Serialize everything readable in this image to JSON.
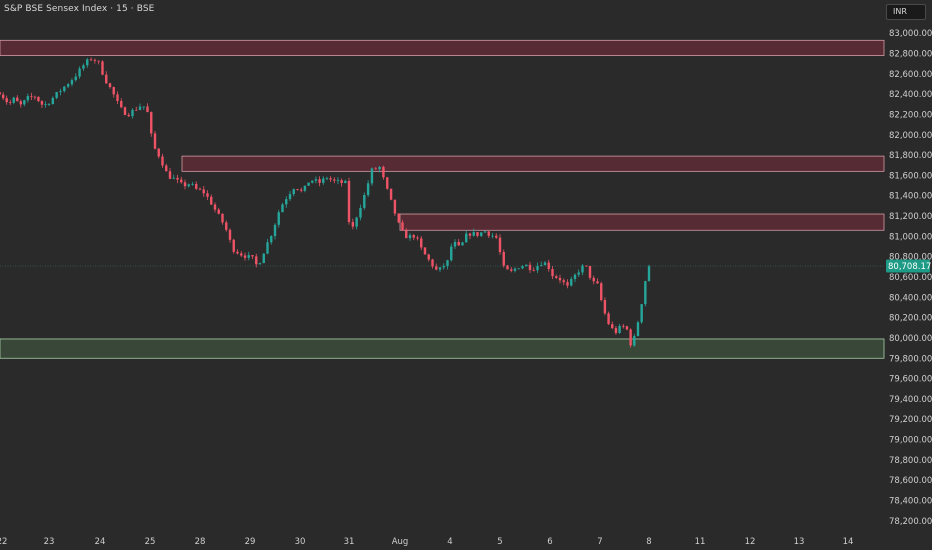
{
  "header": {
    "title": "S&P BSE Sensex Index · 15 · BSE",
    "currency": "INR"
  },
  "chart_data": {
    "type": "candlestick",
    "title": "S&P BSE Sensex Index · 15 · BSE",
    "ylim": [
      78100,
      83120
    ],
    "y_ticks": [
      83000,
      82800,
      82600,
      82400,
      82200,
      82000,
      81800,
      81600,
      81400,
      81200,
      81000,
      80800,
      80600,
      80400,
      80200,
      80000,
      79800,
      79600,
      79400,
      79200,
      79000,
      78800,
      78600,
      78400,
      78200
    ],
    "y_tick_labels": [
      "83,000.00",
      "82,800.00",
      "82,600.00",
      "82,400.00",
      "82,200.00",
      "82,000.00",
      "81,800.00",
      "81,600.00",
      "81,400.00",
      "81,200.00",
      "81,000.00",
      "80,800.00",
      "80,600.00",
      "80,400.00",
      "80,200.00",
      "80,000.00",
      "79,800.00",
      "79,600.00",
      "79,400.00",
      "79,200.00",
      "79,000.00",
      "78,800.00",
      "78,600.00",
      "78,400.00",
      "78,200.00"
    ],
    "x_tick_labels": [
      "22",
      "23",
      "24",
      "25",
      "28",
      "29",
      "30",
      "31",
      "Aug",
      "4",
      "5",
      "6",
      "7",
      "8",
      "11",
      "12",
      "13",
      "14"
    ],
    "x_tick_index": [
      0,
      1,
      2,
      3,
      4,
      5,
      6,
      7,
      8,
      9,
      10,
      11,
      12,
      13,
      14,
      15,
      16,
      17
    ],
    "last_price": 80708.17,
    "last_price_label": "80,708.17",
    "zones": [
      {
        "kind": "supply",
        "from": 82780,
        "to": 82930,
        "x_start": -0.1
      },
      {
        "kind": "supply",
        "from": 81640,
        "to": 81790,
        "x_start": 3.64
      },
      {
        "kind": "supply",
        "from": 81060,
        "to": 81220,
        "x_start": 8.0
      },
      {
        "kind": "demand",
        "from": 79800,
        "to": 79990,
        "x_start": -0.1
      }
    ],
    "series_path": [
      [
        -0.05,
        82420
      ],
      [
        0.15,
        82300
      ],
      [
        0.25,
        82350
      ],
      [
        0.4,
        82290
      ],
      [
        0.55,
        82360
      ],
      [
        0.7,
        82380
      ],
      [
        0.85,
        82300
      ],
      [
        0.95,
        82300
      ],
      [
        1.05,
        82350
      ],
      [
        1.25,
        82450
      ],
      [
        1.4,
        82520
      ],
      [
        1.55,
        82600
      ],
      [
        1.7,
        82700
      ],
      [
        1.85,
        82760
      ],
      [
        1.98,
        82700
      ],
      [
        2.1,
        82550
      ],
      [
        2.25,
        82420
      ],
      [
        2.4,
        82260
      ],
      [
        2.55,
        82200
      ],
      [
        2.7,
        82250
      ],
      [
        2.85,
        82300
      ],
      [
        2.97,
        82200
      ],
      [
        3.05,
        81900
      ],
      [
        3.2,
        81780
      ],
      [
        3.35,
        81600
      ],
      [
        3.5,
        81560
      ],
      [
        3.65,
        81500
      ],
      [
        3.8,
        81520
      ],
      [
        3.95,
        81450
      ],
      [
        4.05,
        81450
      ],
      [
        4.2,
        81350
      ],
      [
        4.35,
        81220
      ],
      [
        4.5,
        81100
      ],
      [
        4.65,
        80880
      ],
      [
        4.8,
        80830
      ],
      [
        4.95,
        80800
      ],
      [
        5.05,
        80780
      ],
      [
        5.15,
        80700
      ],
      [
        5.3,
        80880
      ],
      [
        5.45,
        81050
      ],
      [
        5.6,
        81280
      ],
      [
        5.75,
        81400
      ],
      [
        5.9,
        81500
      ],
      [
        6.05,
        81430
      ],
      [
        6.2,
        81560
      ],
      [
        6.4,
        81530
      ],
      [
        6.55,
        81580
      ],
      [
        6.7,
        81540
      ],
      [
        6.95,
        81520
      ],
      [
        7.02,
        81000
      ],
      [
        7.15,
        81200
      ],
      [
        7.3,
        81400
      ],
      [
        7.45,
        81650
      ],
      [
        7.6,
        81680
      ],
      [
        7.75,
        81450
      ],
      [
        7.92,
        81200
      ],
      [
        8.02,
        81050
      ],
      [
        8.15,
        80990
      ],
      [
        8.3,
        81010
      ],
      [
        8.45,
        80850
      ],
      [
        8.6,
        80750
      ],
      [
        8.75,
        80650
      ],
      [
        8.95,
        80750
      ],
      [
        9.05,
        80950
      ],
      [
        9.2,
        80880
      ],
      [
        9.35,
        81030
      ],
      [
        9.55,
        81020
      ],
      [
        9.7,
        81050
      ],
      [
        9.95,
        80980
      ],
      [
        10.05,
        80700
      ],
      [
        10.2,
        80640
      ],
      [
        10.35,
        80700
      ],
      [
        10.5,
        80720
      ],
      [
        10.65,
        80680
      ],
      [
        10.85,
        80750
      ],
      [
        10.95,
        80720
      ],
      [
        11.05,
        80620
      ],
      [
        11.2,
        80580
      ],
      [
        11.35,
        80500
      ],
      [
        11.55,
        80650
      ],
      [
        11.7,
        80720
      ],
      [
        11.85,
        80550
      ],
      [
        11.95,
        80520
      ],
      [
        12.05,
        80320
      ],
      [
        12.15,
        80160
      ],
      [
        12.3,
        80050
      ],
      [
        12.45,
        80120
      ],
      [
        12.55,
        80080
      ],
      [
        12.65,
        79900
      ],
      [
        12.75,
        80100
      ],
      [
        12.85,
        80350
      ],
      [
        12.93,
        80580
      ],
      [
        13.0,
        80710
      ]
    ]
  }
}
